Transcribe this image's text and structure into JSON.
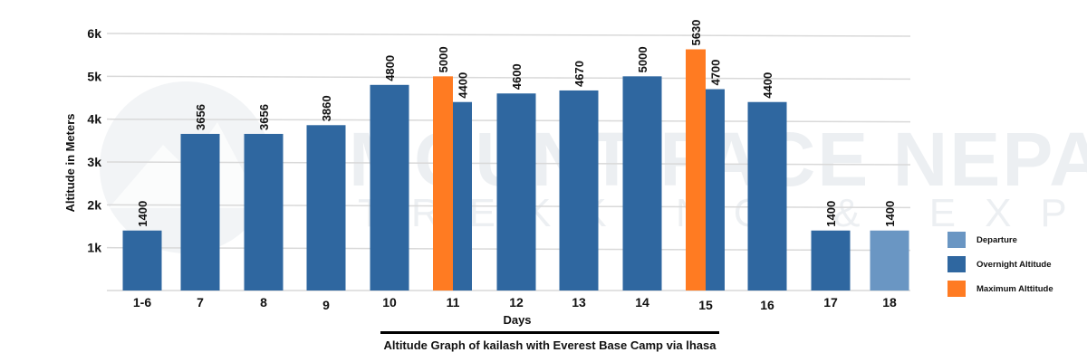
{
  "chart_data": {
    "type": "bar",
    "title": "Altitude Graph of kailash with Everest Base Camp via lhasa",
    "xlabel": "Days",
    "ylabel": "Altitude in Meters",
    "ylim": [
      0,
      6000
    ],
    "yticks": [
      {
        "value": 1000,
        "label": "1k"
      },
      {
        "value": 2000,
        "label": "2k"
      },
      {
        "value": 3000,
        "label": "3k"
      },
      {
        "value": 4000,
        "label": "4k"
      },
      {
        "value": 5000,
        "label": "5k"
      },
      {
        "value": 6000,
        "label": "6k"
      }
    ],
    "grid": true,
    "legend_position": "right",
    "categories": [
      "1-6",
      "7",
      "8",
      "9",
      "10",
      "11",
      "12",
      "13",
      "14",
      "15",
      "16",
      "17",
      "18"
    ],
    "series": [
      {
        "name": "Departure",
        "color": "#6a96c3",
        "values": [
          null,
          null,
          null,
          null,
          null,
          null,
          null,
          null,
          null,
          null,
          null,
          null,
          1400
        ]
      },
      {
        "name": "Overnight Altitude",
        "color": "#2f67a0",
        "values": [
          1400,
          3656,
          3656,
          3860,
          4800,
          4400,
          4600,
          4670,
          5000,
          4700,
          4400,
          1400,
          null
        ]
      },
      {
        "name": "Maximum Alttitude",
        "color": "#ff7b22",
        "values": [
          null,
          null,
          null,
          null,
          null,
          5000,
          null,
          null,
          null,
          5630,
          null,
          null,
          null
        ]
      }
    ],
    "legend": [
      "Departure",
      "Overnight Altitude",
      "Maximum Alttitude"
    ],
    "watermark": {
      "main": "MOUNT FACE NEPAL",
      "sub": "TREKKING & EXPEDITION"
    }
  }
}
